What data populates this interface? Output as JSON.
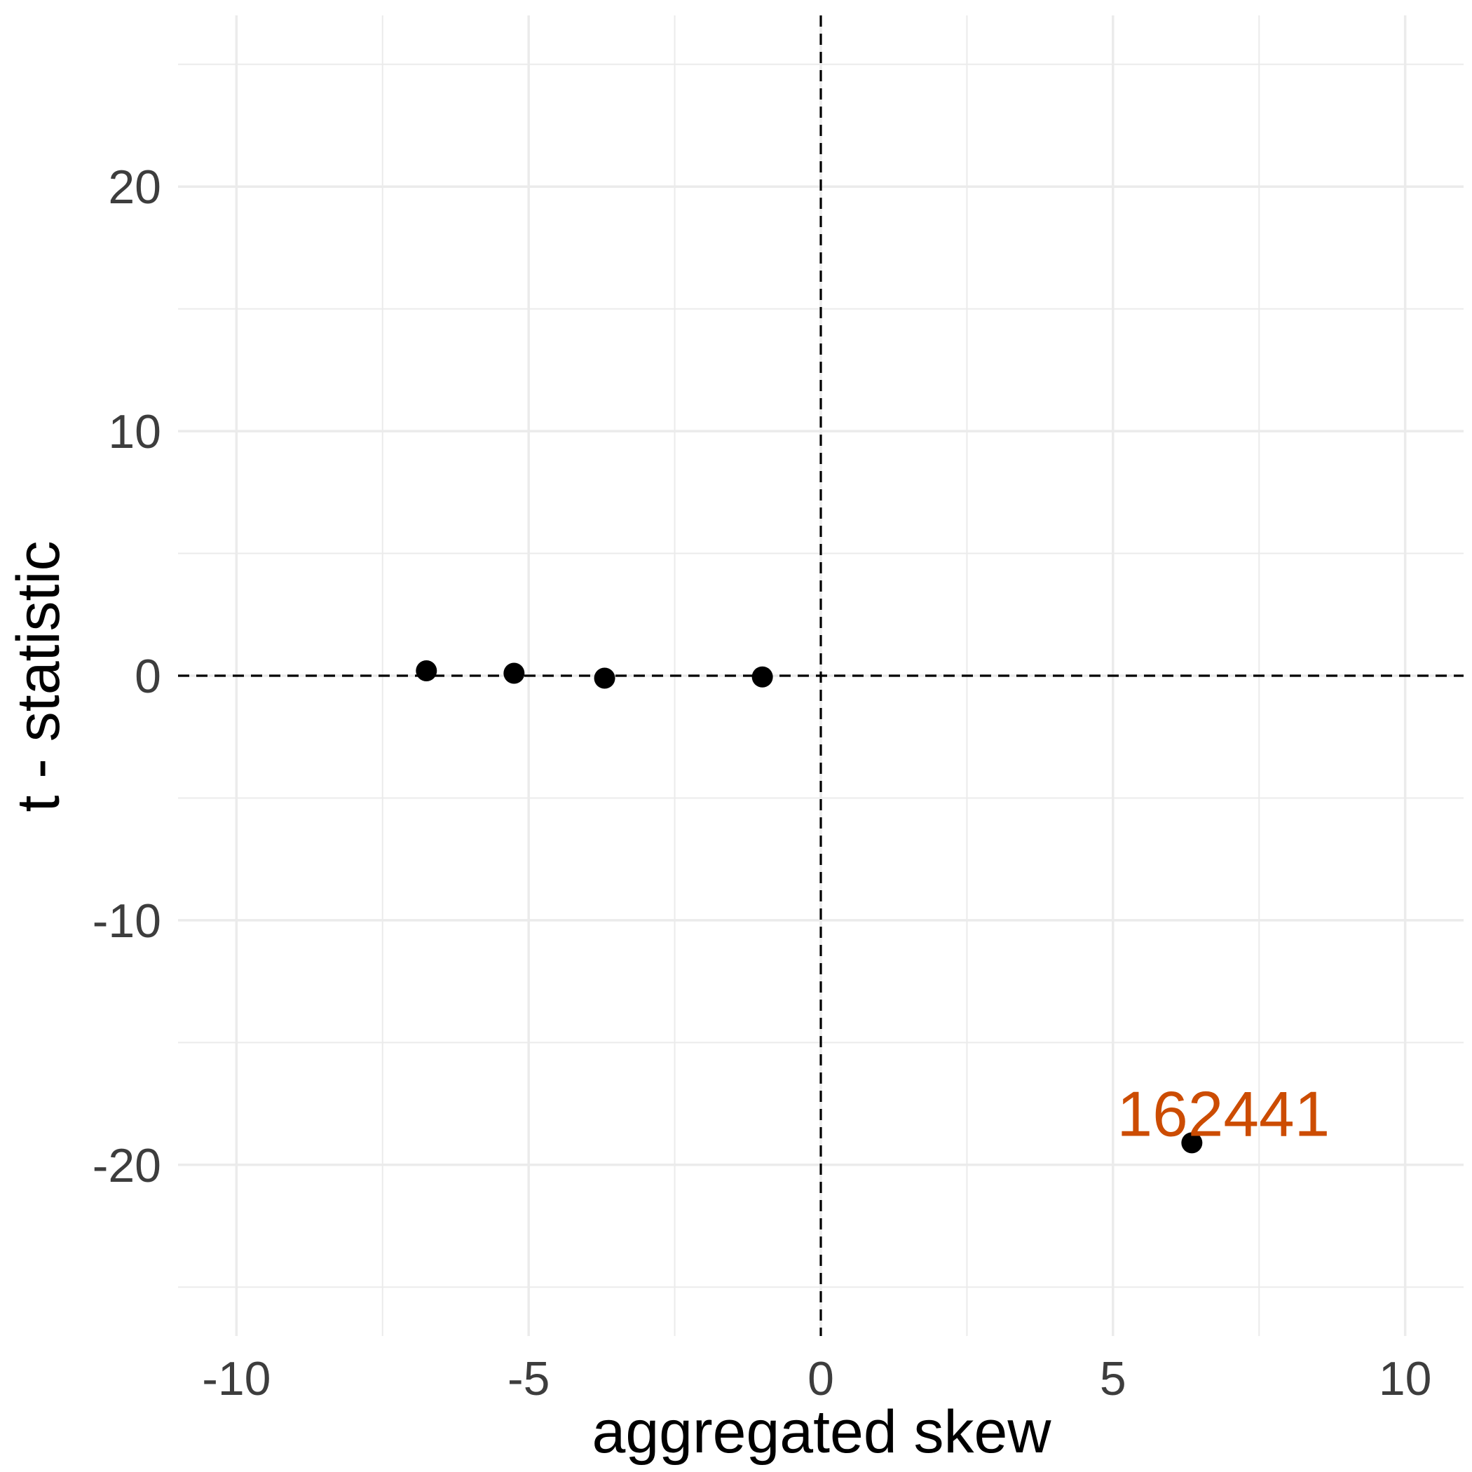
{
  "chart_data": {
    "type": "scatter",
    "xlabel": "aggregated skew",
    "ylabel": "t - statistic",
    "xlim": [
      -11,
      11
    ],
    "ylim": [
      -27,
      27
    ],
    "x_ticks": [
      -10,
      -5,
      0,
      5,
      10
    ],
    "x_tick_labels": [
      "-10",
      "-5",
      "0",
      "5",
      "10"
    ],
    "y_ticks": [
      -20,
      -10,
      0,
      10,
      20
    ],
    "y_tick_labels": [
      "-20",
      "-10",
      "0",
      "10",
      "20"
    ],
    "grid": true,
    "reference_lines": {
      "x": 0,
      "y": 0,
      "style": "dashed"
    },
    "points": [
      {
        "x": -6.75,
        "y": 0.2
      },
      {
        "x": -5.25,
        "y": 0.1
      },
      {
        "x": -3.7,
        "y": -0.1
      },
      {
        "x": -1.0,
        "y": -0.05
      },
      {
        "x": 6.35,
        "y": -19.1,
        "label": "162441"
      }
    ],
    "colors": {
      "point": "#000000",
      "label": "#cc4c02",
      "grid": "#ebebeb",
      "tick_text": "#3d3d3d"
    }
  }
}
